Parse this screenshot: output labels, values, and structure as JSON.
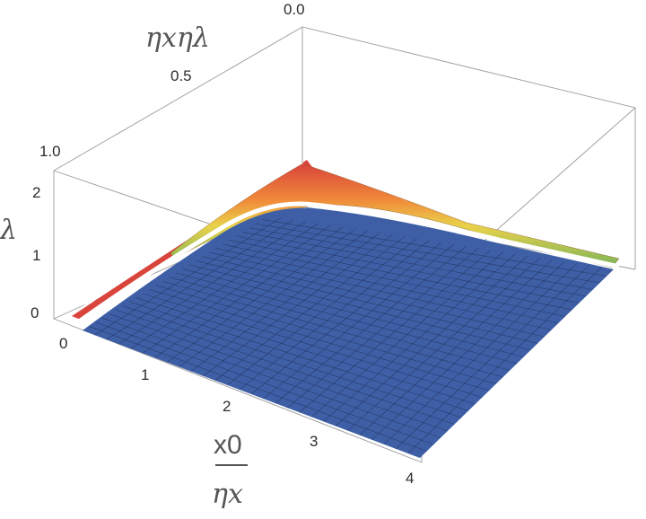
{
  "chart_data": {
    "type": "surface3d",
    "title": "",
    "x_axis": {
      "label_numerator": "x0",
      "label_denominator": "ηx",
      "ticks": [
        "0",
        "1",
        "2",
        "3",
        "4"
      ],
      "range": [
        0,
        4
      ]
    },
    "y_axis": {
      "label": "ηxηλ",
      "ticks": [
        "0.0",
        "0.5",
        "1.0"
      ],
      "range": [
        0,
        1
      ]
    },
    "z_axis": {
      "label": "λ",
      "ticks": [
        "0",
        "1",
        "2"
      ],
      "range": [
        0,
        2.5
      ]
    },
    "surface": {
      "description_values": {
        "plateau_level": 0,
        "ridge_peak": 2.3,
        "boundary_curve_samples_x": [
          0.0,
          0.5,
          1.0,
          1.5,
          2.0,
          2.5,
          3.0,
          3.5,
          4.0
        ],
        "boundary_curve_samples_y": [
          0.95,
          0.78,
          0.62,
          0.52,
          0.48,
          0.5,
          0.55,
          0.63,
          0.72
        ]
      },
      "colors": {
        "plateau": "#3e5fa6",
        "ridge_low": "#7ab35a",
        "ridge_mid": "#e9d24a",
        "ridge_high": "#d9443b",
        "gap": "#ffffff",
        "mesh": "#1f2f55"
      },
      "mesh_lines": 28
    },
    "box": true,
    "grid": false,
    "legend": "none"
  }
}
